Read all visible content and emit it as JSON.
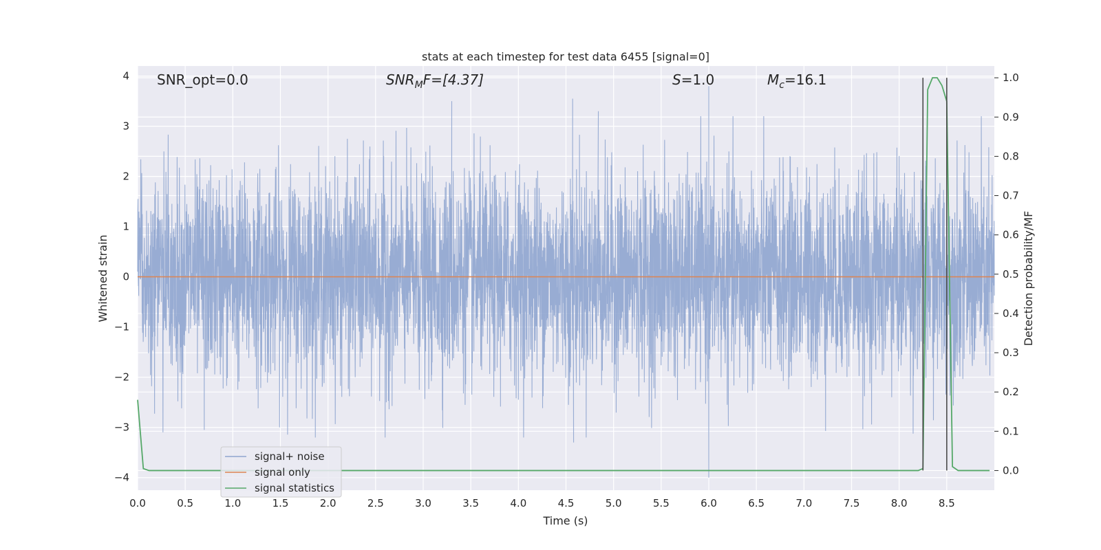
{
  "chart_data": {
    "type": "line",
    "title": "stats at each timestep for test data 6455 [signal=0]",
    "xlabel": "Time (s)",
    "ylabel_left": "Whitened strain",
    "ylabel_right": "Detection probability/MF",
    "xlim": [
      0.0,
      9.0
    ],
    "ylim_left": [
      -4.25,
      4.2
    ],
    "ylim_right": [
      -0.05,
      1.03
    ],
    "xticks": [
      "0.0",
      "0.5",
      "1.0",
      "1.5",
      "2.0",
      "2.5",
      "3.0",
      "3.5",
      "4.0",
      "4.5",
      "5.0",
      "5.5",
      "6.0",
      "6.5",
      "7.0",
      "7.5",
      "8.0",
      "8.5"
    ],
    "yticks_left": [
      "−4",
      "−3",
      "−2",
      "−1",
      "0",
      "1",
      "2",
      "3",
      "4"
    ],
    "yticks_right": [
      "0.0",
      "0.1",
      "0.2",
      "0.3",
      "0.4",
      "0.5",
      "0.6",
      "0.7",
      "0.8",
      "0.9",
      "1.0"
    ],
    "annotations": {
      "snr_opt": "SNR_opt=0.0",
      "snr_mf": {
        "base": "SNR",
        "sub": "M",
        "rest": "F=[4.37]"
      },
      "s_stat": {
        "var": "S",
        "rest": "=1.0"
      },
      "mc": {
        "var": "M",
        "sub": "c",
        "rest": "=16.1"
      }
    },
    "legend": {
      "placement": "lower-left",
      "entries": [
        "signal+ noise",
        "signal only",
        "signal statistics"
      ]
    },
    "colors": {
      "background": "#eaeaf2",
      "grid": "#ffffff",
      "noise": "#8fa5cf",
      "signal": "#dd8452",
      "statistics": "#55a868",
      "marker": "#4a4a4a"
    },
    "series": [
      {
        "name": "signal+ noise",
        "axis": "left",
        "style": "dense-noise",
        "envelope_sigma": 1.0,
        "n_samples": 4600,
        "notable_peaks": [
          {
            "x": 6.0,
            "y": 3.8
          },
          {
            "x": 6.0,
            "y": -4.0
          },
          {
            "x": 4.57,
            "y": 3.55
          },
          {
            "x": 4.58,
            "y": -3.3
          },
          {
            "x": 3.3,
            "y": 3.5
          },
          {
            "x": 4.84,
            "y": 3.3
          },
          {
            "x": 2.6,
            "y": -3.2
          },
          {
            "x": 0.7,
            "y": -3.05
          }
        ]
      },
      {
        "name": "signal only",
        "axis": "left",
        "x": [
          0.0,
          9.0
        ],
        "y": [
          0.0,
          0.0
        ]
      },
      {
        "name": "signal statistics",
        "axis": "right",
        "x": [
          0.0,
          0.06,
          0.12,
          8.2,
          8.25,
          8.3,
          8.35,
          8.4,
          8.45,
          8.5,
          8.56,
          8.62,
          8.95
        ],
        "y": [
          0.18,
          0.005,
          0.0,
          0.0,
          0.005,
          0.97,
          1.0,
          1.0,
          0.98,
          0.94,
          0.01,
          0.0,
          0.0
        ]
      }
    ],
    "vertical_markers": [
      {
        "x": 8.25,
        "y_top": 1.0,
        "y_bottom": 0.0
      },
      {
        "x": 8.5,
        "y_top": 1.0,
        "y_bottom": 0.0
      }
    ]
  }
}
